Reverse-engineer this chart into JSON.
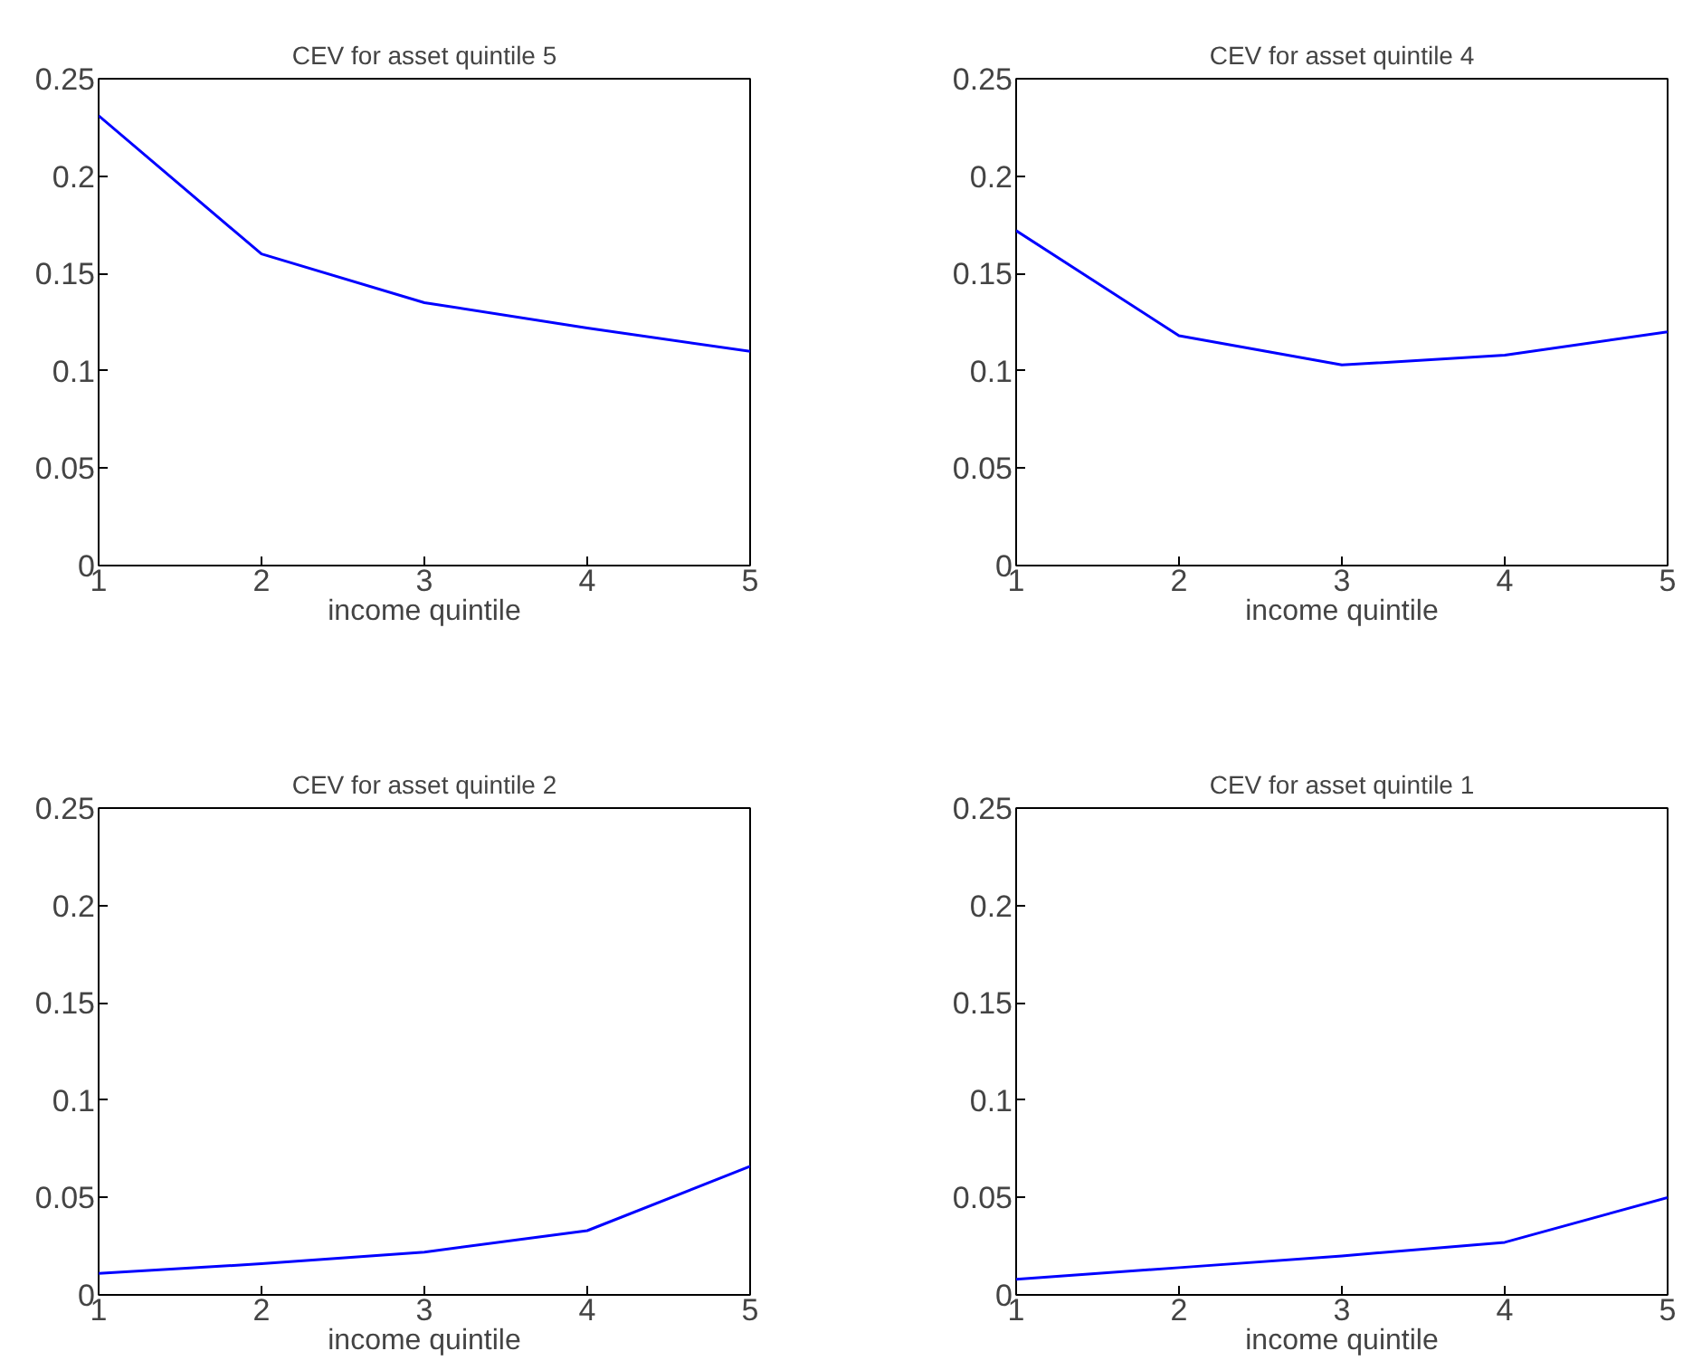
{
  "chart_data": [
    {
      "type": "line",
      "title": "CEV for asset quintile 5",
      "xlabel": "income quintile",
      "x": [
        1,
        2,
        3,
        4,
        5
      ],
      "xlim": [
        1,
        5
      ],
      "ylim": [
        0,
        0.25
      ],
      "xticks": [
        1,
        2,
        3,
        4,
        5
      ],
      "yticks": [
        0,
        0.05,
        0.1,
        0.15,
        0.2,
        0.25
      ],
      "series": [
        {
          "color": "#0000ff",
          "values": [
            0.231,
            0.16,
            0.135,
            0.122,
            0.11
          ]
        }
      ]
    },
    {
      "type": "line",
      "title": "CEV for asset quintile 4",
      "xlabel": "income quintile",
      "x": [
        1,
        2,
        3,
        4,
        5
      ],
      "xlim": [
        1,
        5
      ],
      "ylim": [
        0,
        0.25
      ],
      "xticks": [
        1,
        2,
        3,
        4,
        5
      ],
      "yticks": [
        0,
        0.05,
        0.1,
        0.15,
        0.2,
        0.25
      ],
      "series": [
        {
          "color": "#0000ff",
          "values": [
            0.172,
            0.118,
            0.103,
            0.108,
            0.12
          ]
        }
      ]
    },
    {
      "type": "line",
      "title": "CEV for asset quintile 2",
      "xlabel": "income quintile",
      "x": [
        1,
        2,
        3,
        4,
        5
      ],
      "xlim": [
        1,
        5
      ],
      "ylim": [
        0,
        0.25
      ],
      "xticks": [
        1,
        2,
        3,
        4,
        5
      ],
      "yticks": [
        0,
        0.05,
        0.1,
        0.15,
        0.2,
        0.25
      ],
      "series": [
        {
          "color": "#0000ff",
          "values": [
            0.011,
            0.016,
            0.022,
            0.033,
            0.066
          ]
        }
      ]
    },
    {
      "type": "line",
      "title": "CEV for asset quintile 1",
      "xlabel": "income quintile",
      "x": [
        1,
        2,
        3,
        4,
        5
      ],
      "xlim": [
        1,
        5
      ],
      "ylim": [
        0,
        0.25
      ],
      "xticks": [
        1,
        2,
        3,
        4,
        5
      ],
      "yticks": [
        0,
        0.05,
        0.1,
        0.15,
        0.2,
        0.25
      ],
      "series": [
        {
          "color": "#0000ff",
          "values": [
            0.008,
            0.014,
            0.02,
            0.027,
            0.05
          ]
        }
      ]
    }
  ]
}
